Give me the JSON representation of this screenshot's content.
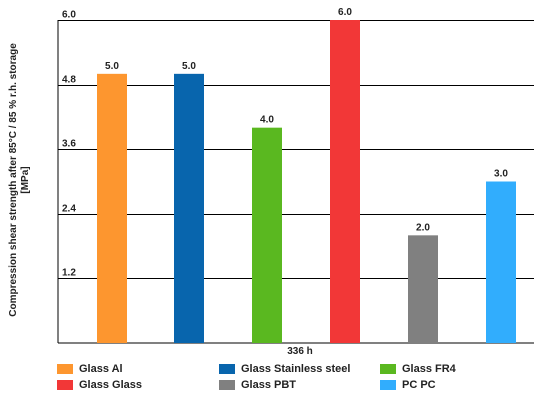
{
  "chart_data": {
    "type": "bar",
    "ylabel_line1": "Compression shear strength after 85°C / 85 % r.h. storage",
    "ylabel_line2": "[MPa]",
    "xlabel": "336 h",
    "ylim": [
      0,
      6.0
    ],
    "yticks": [
      "1.2",
      "2.4",
      "3.6",
      "4.8",
      "6.0"
    ],
    "ytick_values": [
      1.2,
      2.4,
      3.6,
      4.8,
      6.0
    ],
    "grid": true,
    "legend_position": "bottom",
    "series": [
      {
        "name": "Glass Al",
        "value": 5.0,
        "label": "5.0",
        "color": "#fd962f"
      },
      {
        "name": "Glass Stainless steel",
        "value": 5.0,
        "label": "5.0",
        "color": "#0865ad"
      },
      {
        "name": "Glass FR4",
        "value": 4.0,
        "label": "4.0",
        "color": "#5ab820"
      },
      {
        "name": "Glass Glass",
        "value": 6.0,
        "label": "6.0",
        "color": "#f23737"
      },
      {
        "name": "Glass PBT",
        "value": 2.0,
        "label": "2.0",
        "color": "#808080"
      },
      {
        "name": "PC PC",
        "value": 3.0,
        "label": "3.0",
        "color": "#31adfd"
      }
    ]
  }
}
